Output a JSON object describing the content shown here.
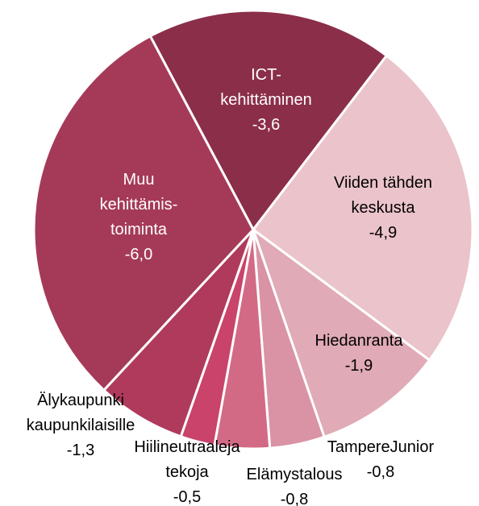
{
  "chart_data": {
    "type": "pie",
    "categories": [
      "ICT-kehittäminen",
      "Viiden tähden keskusta",
      "Hiedanranta",
      "TampereJunior",
      "Elämystalous",
      "Hiilineutraaleja tekoja",
      "Älykaupunki kaupunkilaisille",
      "Muu kehittämis-toiminta"
    ],
    "values": [
      -3.6,
      -4.9,
      -1.9,
      -0.8,
      -0.8,
      -0.5,
      -1.3,
      -6.0
    ],
    "value_labels": [
      "-3,6",
      "-4,9",
      "-1,9",
      "-0,8",
      "-0,8",
      "-0,5",
      "-1,3",
      "-6,0"
    ],
    "colors": [
      "#8b2e4a",
      "#ebc3cb",
      "#e0aab7",
      "#d993a5",
      "#d36a85",
      "#c9436a",
      "#b03a5c",
      "#a53a58"
    ]
  }
}
